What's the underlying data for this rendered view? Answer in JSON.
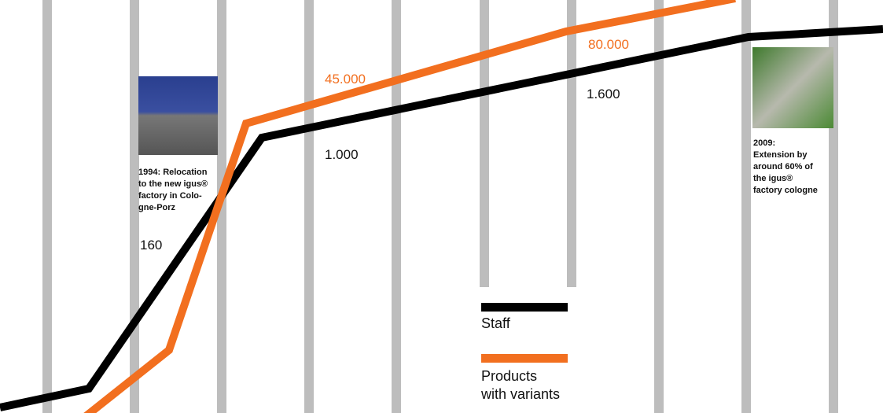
{
  "notes": [
    {
      "lines": [
        "1994: Relocation",
        "to the new igus®",
        "factory in Colo-",
        "gne-Porz"
      ]
    },
    {
      "lines": [
        "2009:",
        "Extension by",
        "around 60% of",
        "the igus®",
        "factory cologne"
      ]
    }
  ],
  "staff_labels": [
    "160",
    "1.000",
    "1.600"
  ],
  "product_labels": [
    "45.000",
    "80.000"
  ],
  "legend": {
    "staff": "Staff",
    "products": [
      "Products",
      "with variants"
    ]
  }
}
